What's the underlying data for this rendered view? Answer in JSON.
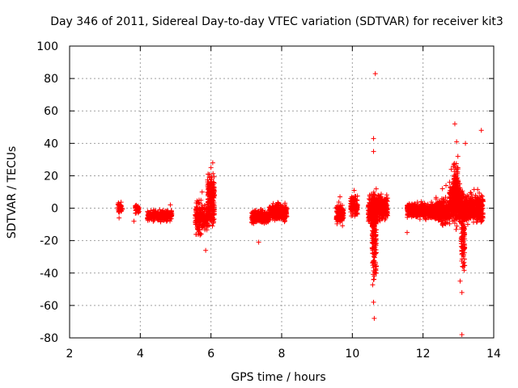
{
  "chart_data": {
    "type": "scatter",
    "title": "Day 346 of 2011, Sidereal Day-to-day VTEC variation (SDTVAR) for receiver kit3",
    "xlabel": "GPS time / hours",
    "ylabel": "SDTVAR / TECUs",
    "xlim": [
      2,
      14
    ],
    "ylim": [
      -80,
      100
    ],
    "xticks": [
      2,
      4,
      6,
      8,
      10,
      12,
      14
    ],
    "yticks": [
      -80,
      -60,
      -40,
      -20,
      0,
      20,
      40,
      60,
      80,
      100
    ],
    "grid": true,
    "marker": "+",
    "color": "#ff0000",
    "clusters": [
      {
        "x0": 3.35,
        "x1": 3.5,
        "y_lo": -5,
        "y_hi": 5,
        "density": 40
      },
      {
        "x0": 3.85,
        "x1": 3.97,
        "y_lo": -4,
        "y_hi": 3,
        "density": 40
      },
      {
        "x0": 4.2,
        "x1": 4.9,
        "y_lo": -9,
        "y_hi": 0,
        "density": 280
      },
      {
        "x0": 5.55,
        "x1": 5.75,
        "y_lo": -20,
        "y_hi": 8,
        "density": 120
      },
      {
        "x0": 5.75,
        "x1": 5.9,
        "y_lo": -16,
        "y_hi": 3,
        "density": 80
      },
      {
        "x0": 5.9,
        "x1": 6.1,
        "y_lo": -20,
        "y_hi": 27,
        "density": 220
      },
      {
        "x0": 7.15,
        "x1": 7.65,
        "y_lo": -11,
        "y_hi": 0,
        "density": 260
      },
      {
        "x0": 7.65,
        "x1": 8.15,
        "y_lo": -10,
        "y_hi": 5,
        "density": 280
      },
      {
        "x0": 9.55,
        "x1": 9.75,
        "y_lo": -12,
        "y_hi": 6,
        "density": 120
      },
      {
        "x0": 9.95,
        "x1": 10.15,
        "y_lo": -7,
        "y_hi": 9,
        "density": 120
      },
      {
        "x0": 10.45,
        "x1": 10.72,
        "y_lo": -13,
        "y_hi": 12,
        "density": 240
      },
      {
        "x0": 10.72,
        "x1": 11.0,
        "y_lo": -10,
        "y_hi": 10,
        "density": 200
      },
      {
        "x0": 10.56,
        "x1": 10.68,
        "y_lo": -55,
        "y_hi": 20,
        "density": 160
      },
      {
        "x0": 11.55,
        "x1": 12.35,
        "y_lo": -8,
        "y_hi": 5,
        "density": 520
      },
      {
        "x0": 12.35,
        "x1": 12.75,
        "y_lo": -12,
        "y_hi": 8,
        "density": 280
      },
      {
        "x0": 12.75,
        "x1": 13.05,
        "y_lo": -12,
        "y_hi": 18,
        "density": 300
      },
      {
        "x0": 12.85,
        "x1": 13.0,
        "y_lo": -15,
        "y_hi": 35,
        "density": 160
      },
      {
        "x0": 13.05,
        "x1": 13.4,
        "y_lo": -12,
        "y_hi": 12,
        "density": 280
      },
      {
        "x0": 13.4,
        "x1": 13.7,
        "y_lo": -12,
        "y_hi": 12,
        "density": 240
      },
      {
        "x0": 13.08,
        "x1": 13.18,
        "y_lo": -50,
        "y_hi": 20,
        "density": 100
      }
    ],
    "outliers": [
      {
        "x": 10.65,
        "y": 83
      },
      {
        "x": 10.6,
        "y": 43
      },
      {
        "x": 10.6,
        "y": 35
      },
      {
        "x": 10.62,
        "y": -68
      },
      {
        "x": 10.6,
        "y": -58
      },
      {
        "x": 10.62,
        "y": -42
      },
      {
        "x": 13.65,
        "y": 48
      },
      {
        "x": 12.9,
        "y": 52
      },
      {
        "x": 13.1,
        "y": -78
      },
      {
        "x": 13.1,
        "y": -52
      },
      {
        "x": 13.05,
        "y": -45
      },
      {
        "x": 7.35,
        "y": -21
      },
      {
        "x": 5.85,
        "y": -26
      },
      {
        "x": 5.75,
        "y": 10
      },
      {
        "x": 3.82,
        "y": -8
      },
      {
        "x": 3.4,
        "y": -6
      },
      {
        "x": 4.85,
        "y": 2
      },
      {
        "x": 11.55,
        "y": -15
      },
      {
        "x": 12.65,
        "y": 14
      },
      {
        "x": 12.55,
        "y": 12
      },
      {
        "x": 12.8,
        "y": 24
      },
      {
        "x": 13.2,
        "y": 40
      },
      {
        "x": 9.65,
        "y": 7
      },
      {
        "x": 10.05,
        "y": 11
      },
      {
        "x": 12.95,
        "y": 41
      },
      {
        "x": 6.05,
        "y": 28
      },
      {
        "x": 6.0,
        "y": 25
      }
    ]
  }
}
